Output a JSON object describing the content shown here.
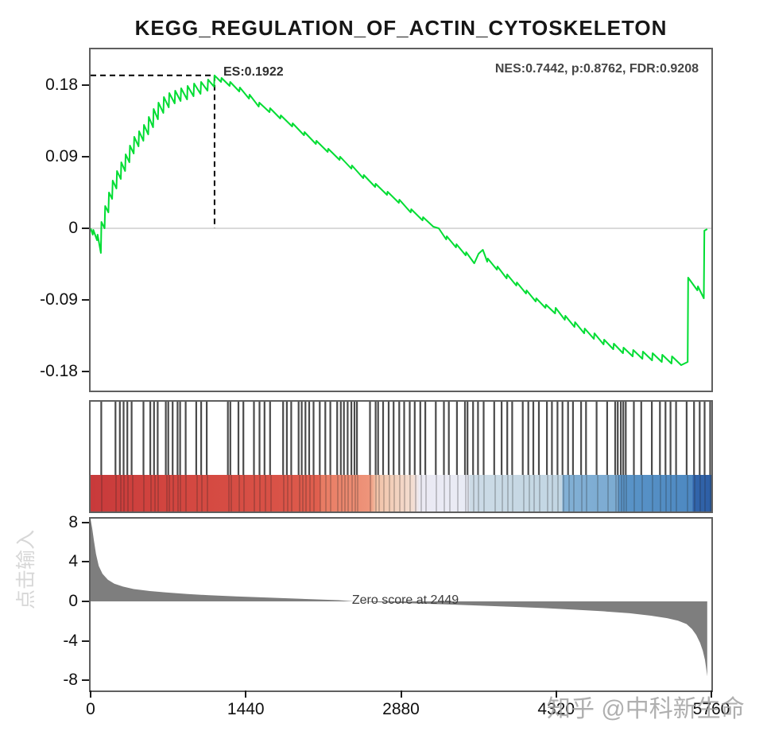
{
  "title": "KEGG_REGULATION_OF_ACTIN_CYTOSKELETON",
  "watermarks": {
    "right": "知乎 @中科新生命",
    "left": "点击输入"
  },
  "colors": {
    "es_curve": "#00dd33",
    "area_fill": "#7e7e7e",
    "hit_line": "#2b2b2b",
    "dashed_line": "#000000",
    "zero_line": "#c4c4c4",
    "frame": "#5f5f5f",
    "gradient_red": "#c83a3b",
    "gradient_blue": "#2e5fa6"
  },
  "chart_data": [
    {
      "type": "line",
      "name": "enrichment-score-profile",
      "title": "KEGG_REGULATION_OF_ACTIN_CYTOSKELETON",
      "es_label": "ES:0.1922",
      "stats_label": "NES:0.7442, p:0.8762, FDR:0.9208",
      "peak": {
        "rank": 1150,
        "es": 0.1922
      },
      "zero_crossing_rank": 3230,
      "yticks": [
        0.18,
        0.09,
        0,
        -0.09,
        -0.18
      ],
      "xlim": [
        0,
        5760
      ],
      "ylim": [
        -0.206,
        0.227
      ],
      "x": [
        0,
        20,
        25,
        60,
        65,
        95,
        100,
        130,
        135,
        165,
        170,
        200,
        205,
        240,
        245,
        280,
        285,
        320,
        325,
        360,
        365,
        400,
        405,
        445,
        450,
        490,
        495,
        535,
        540,
        580,
        585,
        625,
        630,
        675,
        680,
        725,
        730,
        780,
        785,
        835,
        840,
        895,
        900,
        955,
        960,
        1020,
        1025,
        1085,
        1090,
        1145,
        1150,
        1210,
        1215,
        1290,
        1295,
        1380,
        1385,
        1470,
        1475,
        1560,
        1565,
        1660,
        1665,
        1760,
        1765,
        1870,
        1875,
        1980,
        1985,
        2090,
        2095,
        2200,
        2205,
        2310,
        2315,
        2420,
        2425,
        2530,
        2535,
        2640,
        2645,
        2750,
        2755,
        2860,
        2865,
        2970,
        2975,
        3080,
        3085,
        3180,
        3230,
        3300,
        3305,
        3390,
        3395,
        3480,
        3485,
        3560,
        3600,
        3640,
        3680,
        3685,
        3770,
        3775,
        3860,
        3865,
        3950,
        3955,
        4040,
        4045,
        4130,
        4135,
        4220,
        4225,
        4310,
        4315,
        4400,
        4405,
        4490,
        4495,
        4580,
        4585,
        4670,
        4675,
        4760,
        4765,
        4850,
        4855,
        4940,
        4945,
        5030,
        5035,
        5120,
        5125,
        5210,
        5215,
        5300,
        5305,
        5390,
        5395,
        5480,
        5540,
        5545,
        5630,
        5635,
        5690,
        5695,
        5722
      ],
      "y": [
        0,
        -0.008,
        -0.002,
        -0.015,
        -0.008,
        -0.031,
        0.008,
        0.0,
        0.028,
        0.02,
        0.045,
        0.037,
        0.06,
        0.05,
        0.072,
        0.062,
        0.083,
        0.072,
        0.093,
        0.083,
        0.104,
        0.094,
        0.115,
        0.103,
        0.122,
        0.11,
        0.13,
        0.118,
        0.14,
        0.127,
        0.15,
        0.137,
        0.158,
        0.145,
        0.165,
        0.152,
        0.17,
        0.157,
        0.173,
        0.16,
        0.176,
        0.162,
        0.179,
        0.166,
        0.182,
        0.169,
        0.184,
        0.173,
        0.187,
        0.178,
        0.1922,
        0.184,
        0.189,
        0.179,
        0.184,
        0.172,
        0.177,
        0.163,
        0.168,
        0.153,
        0.158,
        0.146,
        0.151,
        0.138,
        0.142,
        0.128,
        0.132,
        0.117,
        0.121,
        0.106,
        0.11,
        0.096,
        0.1,
        0.086,
        0.09,
        0.075,
        0.079,
        0.063,
        0.067,
        0.052,
        0.056,
        0.042,
        0.046,
        0.032,
        0.036,
        0.02,
        0.024,
        0.01,
        0.014,
        0.002,
        0.0,
        -0.014,
        -0.01,
        -0.024,
        -0.02,
        -0.034,
        -0.03,
        -0.044,
        -0.032,
        -0.027,
        -0.042,
        -0.038,
        -0.052,
        -0.048,
        -0.063,
        -0.058,
        -0.072,
        -0.068,
        -0.082,
        -0.078,
        -0.092,
        -0.088,
        -0.1,
        -0.096,
        -0.107,
        -0.1,
        -0.115,
        -0.11,
        -0.124,
        -0.118,
        -0.132,
        -0.126,
        -0.139,
        -0.132,
        -0.146,
        -0.14,
        -0.152,
        -0.145,
        -0.157,
        -0.15,
        -0.161,
        -0.153,
        -0.164,
        -0.155,
        -0.166,
        -0.157,
        -0.168,
        -0.159,
        -0.17,
        -0.161,
        -0.172,
        -0.168,
        -0.062,
        -0.078,
        -0.073,
        -0.088,
        -0.003,
        -0.001
      ]
    },
    {
      "type": "heatmap",
      "name": "hit-positions-and-rank-heatmap",
      "hits": [
        0.017,
        0.04,
        0.047,
        0.053,
        0.059,
        0.066,
        0.085,
        0.096,
        0.102,
        0.108,
        0.121,
        0.125,
        0.132,
        0.14,
        0.144,
        0.153,
        0.17,
        0.178,
        0.187,
        0.221,
        0.225,
        0.238,
        0.246,
        0.263,
        0.272,
        0.28,
        0.289,
        0.31,
        0.316,
        0.323,
        0.335,
        0.34,
        0.346,
        0.352,
        0.359,
        0.369,
        0.378,
        0.386,
        0.397,
        0.403,
        0.408,
        0.414,
        0.42,
        0.425,
        0.429,
        0.45,
        0.459,
        0.463,
        0.471,
        0.48,
        0.488,
        0.497,
        0.505,
        0.514,
        0.522,
        0.531,
        0.539,
        0.556,
        0.569,
        0.577,
        0.59,
        0.603,
        0.607,
        0.616,
        0.624,
        0.633,
        0.65,
        0.662,
        0.671,
        0.679,
        0.696,
        0.705,
        0.713,
        0.722,
        0.735,
        0.743,
        0.752,
        0.76,
        0.769,
        0.777,
        0.79,
        0.798,
        0.815,
        0.832,
        0.845,
        0.849,
        0.854,
        0.858,
        0.862,
        0.875,
        0.887,
        0.904,
        0.917,
        0.926,
        0.934,
        0.943,
        0.96,
        0.972,
        0.981,
        0.989,
        0.998
      ],
      "gradient": [
        {
          "pos": 0,
          "color": "#c83a3b"
        },
        {
          "pos": 12,
          "color": "#d2453f"
        },
        {
          "pos": 30,
          "color": "#d95247"
        },
        {
          "pos": 37,
          "color": "#e0604f"
        },
        {
          "pos": 37,
          "color": "#e87a62"
        },
        {
          "pos": 45,
          "color": "#ee957b"
        },
        {
          "pos": 46,
          "color": "#f2c3a8"
        },
        {
          "pos": 52,
          "color": "#f3ded2"
        },
        {
          "pos": 53,
          "color": "#ebeaf3"
        },
        {
          "pos": 61,
          "color": "#e9ebf5"
        },
        {
          "pos": 61,
          "color": "#ccdbe6"
        },
        {
          "pos": 76,
          "color": "#c2d6e3"
        },
        {
          "pos": 76,
          "color": "#82b0d5"
        },
        {
          "pos": 85,
          "color": "#7cabd2"
        },
        {
          "pos": 85,
          "color": "#5b95c8"
        },
        {
          "pos": 97,
          "color": "#4d88c1"
        },
        {
          "pos": 97,
          "color": "#3265ab"
        },
        {
          "pos": 100,
          "color": "#2e5fa6"
        }
      ]
    },
    {
      "type": "area",
      "name": "ranked-list-metric",
      "zero_label": "Zero score at 2449",
      "zero_cross": 2449,
      "yticks": [
        8,
        4,
        0,
        -4,
        -8
      ],
      "xticks": [
        0,
        1440,
        2880,
        4320,
        5760
      ],
      "ylim": [
        -8.6,
        8.6
      ],
      "x": [
        0,
        15,
        30,
        50,
        75,
        110,
        160,
        220,
        300,
        400,
        550,
        700,
        900,
        1100,
        1350,
        1600,
        1850,
        2100,
        2300,
        2449,
        2700,
        3000,
        3300,
        3600,
        3900,
        4200,
        4500,
        4750,
        5000,
        5200,
        5350,
        5450,
        5530,
        5580,
        5620,
        5655,
        5680,
        5700,
        5712,
        5722
      ],
      "y": [
        8.3,
        7.4,
        6.2,
        4.8,
        3.6,
        2.8,
        2.2,
        1.8,
        1.5,
        1.25,
        1.05,
        0.9,
        0.75,
        0.62,
        0.5,
        0.4,
        0.3,
        0.2,
        0.12,
        0,
        -0.1,
        -0.2,
        -0.3,
        -0.42,
        -0.55,
        -0.68,
        -0.85,
        -1.0,
        -1.2,
        -1.45,
        -1.7,
        -1.95,
        -2.3,
        -2.8,
        -3.4,
        -4.2,
        -5.0,
        -5.9,
        -6.8,
        -7.6
      ]
    }
  ]
}
